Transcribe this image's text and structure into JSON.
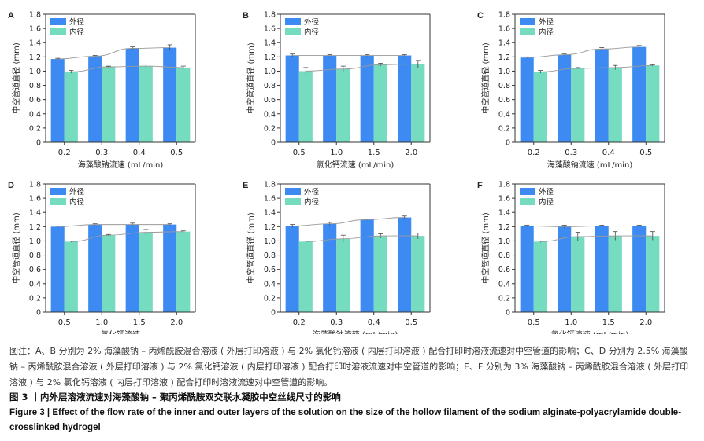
{
  "colors": {
    "outer": "#3d8bf2",
    "inner": "#76dcc0",
    "trend": "#9a9a9a",
    "axis": "#333333"
  },
  "chart_data": [
    {
      "type": "bar",
      "panel": "A",
      "categories": [
        "0.2",
        "0.3",
        "0.4",
        "0.5"
      ],
      "xlabel": "海藻酸钠流速 (mL/min)",
      "ylabel": "中空管道直径 (mm)",
      "ylim": [
        0,
        1.8
      ],
      "yticks": [
        "0",
        "0.2",
        "0.4",
        "0.6",
        "0.8",
        "1.0",
        "1.2",
        "1.4",
        "1.6",
        "1.8"
      ],
      "legend_position": "top-left",
      "series": [
        {
          "name": "外径",
          "values": [
            1.17,
            1.21,
            1.32,
            1.33
          ],
          "errors": [
            0.01,
            0.01,
            0.02,
            0.04
          ]
        },
        {
          "name": "内径",
          "values": [
            0.99,
            1.06,
            1.07,
            1.05
          ],
          "errors": [
            0.02,
            0.01,
            0.03,
            0.02
          ]
        }
      ]
    },
    {
      "type": "bar",
      "panel": "B",
      "categories": [
        "0.5",
        "1.0",
        "1.5",
        "2.0"
      ],
      "xlabel": "氯化钙流速 (mL/min)",
      "ylabel": "中空管道直径 (mm)",
      "ylim": [
        0,
        1.8
      ],
      "yticks": [
        "0",
        "0.2",
        "0.4",
        "0.6",
        "0.8",
        "1.0",
        "1.2",
        "1.4",
        "1.6",
        "1.8"
      ],
      "legend_position": "top-left",
      "series": [
        {
          "name": "外径",
          "values": [
            1.22,
            1.22,
            1.22,
            1.22
          ],
          "errors": [
            0.02,
            0.01,
            0.01,
            0.01
          ]
        },
        {
          "name": "内径",
          "values": [
            1.0,
            1.03,
            1.09,
            1.1
          ],
          "errors": [
            0.05,
            0.04,
            0.02,
            0.05
          ]
        }
      ]
    },
    {
      "type": "bar",
      "panel": "C",
      "categories": [
        "0.2",
        "0.3",
        "0.4",
        "0.5"
      ],
      "xlabel": "海藻酸钠流速 (mL/min)",
      "ylabel": "中空管道直径 (mm)",
      "ylim": [
        0,
        1.8
      ],
      "yticks": [
        "0",
        "0.2",
        "0.4",
        "0.6",
        "0.8",
        "1.0",
        "1.2",
        "1.4",
        "1.6",
        "1.8"
      ],
      "legend_position": "top-left",
      "series": [
        {
          "name": "外径",
          "values": [
            1.19,
            1.23,
            1.31,
            1.34
          ],
          "errors": [
            0.01,
            0.01,
            0.02,
            0.02
          ]
        },
        {
          "name": "内径",
          "values": [
            0.99,
            1.04,
            1.05,
            1.08
          ],
          "errors": [
            0.02,
            0.01,
            0.03,
            0.01
          ]
        }
      ]
    },
    {
      "type": "bar",
      "panel": "D",
      "categories": [
        "0.5",
        "1.0",
        "1.5",
        "2.0"
      ],
      "xlabel": "氯化钙流速",
      "ylabel": "中空管道直径 (mm)",
      "ylim": [
        0,
        1.8
      ],
      "yticks": [
        "0",
        "0.2",
        "0.4",
        "0.6",
        "0.8",
        "1.0",
        "1.2",
        "1.4",
        "1.6",
        "1.8"
      ],
      "legend_position": "top-left",
      "series": [
        {
          "name": "外径",
          "values": [
            1.2,
            1.23,
            1.23,
            1.23
          ],
          "errors": [
            0.01,
            0.01,
            0.02,
            0.01
          ]
        },
        {
          "name": "内径",
          "values": [
            0.99,
            1.08,
            1.12,
            1.13
          ],
          "errors": [
            0.01,
            0.01,
            0.04,
            0.01
          ]
        }
      ]
    },
    {
      "type": "bar",
      "panel": "E",
      "categories": [
        "0.2",
        "0.3",
        "0.4",
        "0.5"
      ],
      "xlabel": "海藻酸钠流速 (mL/min)",
      "ylabel": "中空管道直径 (mm)",
      "ylim": [
        0,
        1.8
      ],
      "yticks": [
        "0",
        "0.2",
        "0.4",
        "0.6",
        "0.8",
        "1.0",
        "1.2",
        "1.4",
        "1.6",
        "1.8"
      ],
      "legend_position": "top-left",
      "series": [
        {
          "name": "外径",
          "values": [
            1.21,
            1.24,
            1.3,
            1.33
          ],
          "errors": [
            0.02,
            0.02,
            0.01,
            0.02
          ]
        },
        {
          "name": "内径",
          "values": [
            0.99,
            1.03,
            1.07,
            1.07
          ],
          "errors": [
            0.01,
            0.05,
            0.03,
            0.04
          ]
        }
      ]
    },
    {
      "type": "bar",
      "panel": "F",
      "categories": [
        "0.5",
        "1.0",
        "1.5",
        "2.0"
      ],
      "xlabel": "氯化钙流速 (mL/min)",
      "ylabel": "中空管道直径 (mm)",
      "ylim": [
        0,
        1.8
      ],
      "yticks": [
        "0",
        "0.2",
        "0.4",
        "0.6",
        "0.8",
        "1.0",
        "1.2",
        "1.4",
        "1.6",
        "1.8"
      ],
      "legend_position": "top-left",
      "series": [
        {
          "name": "外径",
          "values": [
            1.21,
            1.2,
            1.21,
            1.21
          ],
          "errors": [
            0.01,
            0.02,
            0.01,
            0.01
          ]
        },
        {
          "name": "内径",
          "values": [
            0.99,
            1.06,
            1.07,
            1.07
          ],
          "errors": [
            0.01,
            0.06,
            0.06,
            0.06
          ]
        }
      ]
    }
  ],
  "caption": {
    "note": "图注：A、B 分别为 2% 海藻酸钠 – 丙烯酰胺混合溶液 ( 外层打印溶液 ) 与 2% 氯化钙溶液 ( 内层打印溶液 ) 配合打印时溶液流速对中空管道的影响；C、D 分别为 2.5% 海藻酸钠 – 丙烯酰胺混合溶液 ( 外层打印溶液 ) 与 2% 氯化钙溶液 ( 内层打印溶液 ) 配合打印时溶液流速对中空管道的影响；E、F 分别为 3% 海藻酸钠 – 丙烯酰胺混合溶液 ( 外层打印溶液 ) 与 2% 氯化钙溶液 ( 内层打印溶液 ) 配合打印时溶液流速对中空管道的影响。",
    "title_cn": "图 3 丨内外层溶液流速对海藻酸钠 – 聚丙烯酰胺双交联水凝胶中空丝线尺寸的影响",
    "title_en": "Figure 3 | Effect of the flow rate of the inner and outer layers of the solution on the size of the hollow filament of the sodium alginate-polyacrylamide double-crosslinked hydrogel"
  }
}
